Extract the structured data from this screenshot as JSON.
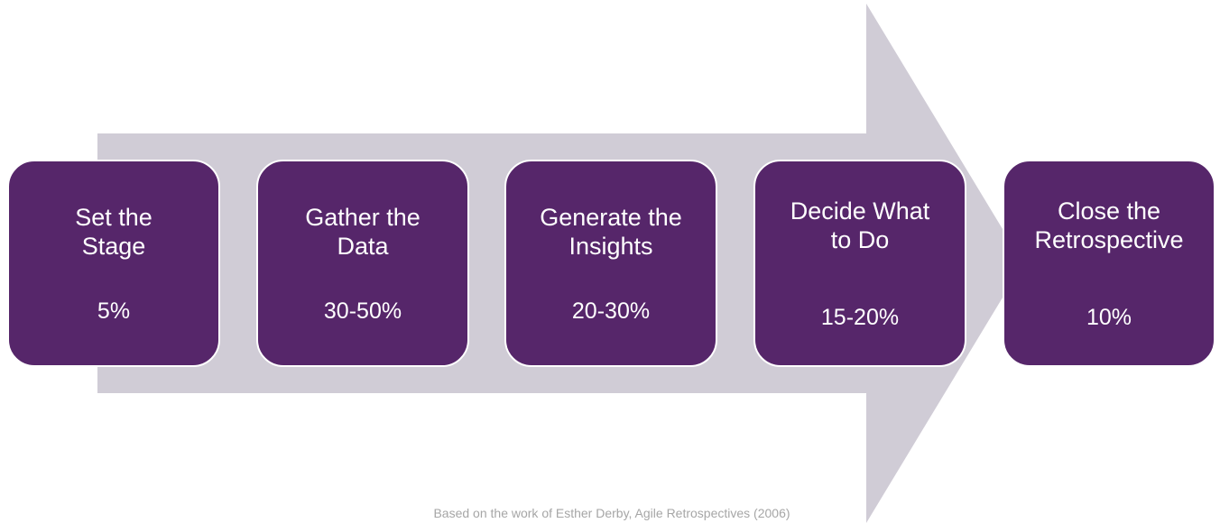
{
  "stages": [
    {
      "title": "Set the\nStage",
      "percent": "5%"
    },
    {
      "title": "Gather the\nData",
      "percent": "30-50%"
    },
    {
      "title": "Generate the\nInsights",
      "percent": "20-30%"
    },
    {
      "title": "Decide What\nto Do",
      "percent": "15-20%"
    },
    {
      "title": "Close the\nRetrospective",
      "percent": "10%"
    }
  ],
  "credit": "Based on the work of Esther Derby, Agile Retrospectives (2006)",
  "colors": {
    "arrow": "#d0ccd6",
    "stage_fill": "#56266a",
    "stage_text": "#ffffff",
    "credit_text": "#a6a6a6"
  }
}
